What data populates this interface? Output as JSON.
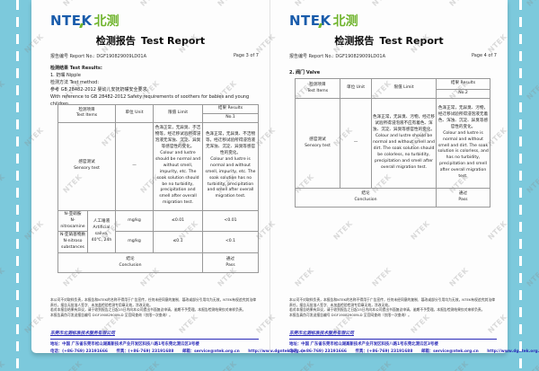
{
  "frame": {
    "bg_color": "#7cc9dc"
  },
  "watermark": {
    "text": "NTEK"
  },
  "footer": {
    "disclaimer_lines": [
      "本公司不对取样负责，本报告和NTEK的名称不得用于广告宣传，任何未经同意的复制、篡改或部分引用均为无效，NTEK有权追究其法律责任，报告无批准人签字、未加盖检验检测专用章无效，涂改无效。",
      "若对本报告结果有异议，请于收到报告之日起15日内向本公司提出书面复议申请，逾期不予受理。本报告检测结果仅对来样负责。",
      "本报告真伪可发送报告编号 DGF190829009LD 至官网查询（仅限一次查询）。"
    ],
    "company": "东莞市北测标准技术服务有限公司",
    "address": "地址：中国 广东省东莞市松山湖高新技术产业开发区科技八路1号东莞北测云区3号楼",
    "tel": "电话：(+86-769) 23191666",
    "fax": "传真：(+86-769) 23191688",
    "email": "邮箱：service@ntek.org.cn",
    "website": "http://www.dgntek.org.cn"
  },
  "left_page": {
    "logo_en": "NTEK",
    "logo_cn": "北测",
    "title_cn": "检测报告",
    "title_en": "Test Report",
    "report_label": "报告编号 Report No.:",
    "report_no": "DGF190829009LD01A",
    "page_no": "Page 3 of 7",
    "results_heading": "检测结果 Test Results:",
    "sample_line": "1. 奶嘴 Nipple",
    "method_heading": "检测方法 Test method:",
    "method_cn": "参考 GB 28482-2012 婴幼儿安抚奶嘴安全要求。",
    "method_en": "With reference to GB 28482-2012 Safety requirements of soothers for babies and young children.",
    "table": {
      "header": {
        "items": "检测项目",
        "items_en": "Test Items",
        "unit": "单位 Unit",
        "limit": "限值 Limit",
        "results": "结果 Results",
        "no": "No.1"
      },
      "sensory": {
        "name_cn": "感官测试",
        "name_en": "Sensory test",
        "unit": "—",
        "limit_cn": "色泽正常，无异臭、不洁物等，经迁移试验所得浸泡液无浑浊、沉淀、异臭等感官性的变化。",
        "limit_en": "Colour and lustre should be normal and without smell, impurity, etc. The soak solution should be no turbidity, precipitation and smell after overall migration test.",
        "result_cn": "色泽正常，无异臭、不洁物等，经迁移试验所得浸泡液无浑浊、沉淀、异臭等感官性的变化。",
        "result_en": "Colour and lustre is normal and without smell, impurity, etc. The soak solution has no turbidity, precipitation and smell after overall migration test."
      },
      "condition": {
        "cn": "人工唾液",
        "en": "Artificial saliva,",
        "detail": "40℃, 24h"
      },
      "rows": [
        {
          "name_cn": "N-亚硝胺",
          "name_en": "N-nitrosamine",
          "unit": "mg/kg",
          "limit": "≤0.01",
          "result": "<0.01"
        },
        {
          "name_cn": "N-亚硝基物质",
          "name_en": "N-nitroso substances",
          "unit": "mg/kg",
          "limit": "≤0.1",
          "result": "<0.1"
        }
      ],
      "conclusion_cn": "结论",
      "conclusion_en": "Conclusion",
      "pass_cn": "通过",
      "pass_en": "Pass"
    }
  },
  "right_page": {
    "logo_en": "NTEK",
    "logo_cn": "北测",
    "title_cn": "检测报告",
    "title_en": "Test Report",
    "report_label": "报告编号 Report No.:",
    "report_no": "DGF190829009LD01A",
    "page_no": "Page 4 of 7",
    "section_line": "2. 阀门 Valve",
    "table": {
      "header": {
        "items": "检测项目",
        "items_en": "Test Items",
        "unit": "单位 Unit",
        "limit": "限值 Limit",
        "results": "结果 Results",
        "no": "No.2"
      },
      "sensory": {
        "name_cn": "感官测试",
        "name_en": "Sensory test",
        "unit": "—",
        "limit_cn": "色泽正常，无异臭、污物，经迁移试验所得浸泡液不应有着色、浑浊、沉淀、异臭等感官性的变化。",
        "limit_en": "Colour and lustre should be normal and without smell and dirt. The soak solution should be colorless, no turbidity, precipitation and smell after overall migration test.",
        "result_cn": "色泽正常，无异臭、污物，经迁移试验所得浸泡液无着色、浑浊、沉淀、异臭等感官性的变化。",
        "result_en": "Colour and lustre is normal and without smell and dirt. The soak solution is colorless, and has no turbidity, precipitation and smell after overall migration test."
      },
      "conclusion_cn": "结论",
      "conclusion_en": "Conclusion",
      "pass_cn": "通过",
      "pass_en": "Pass"
    }
  }
}
